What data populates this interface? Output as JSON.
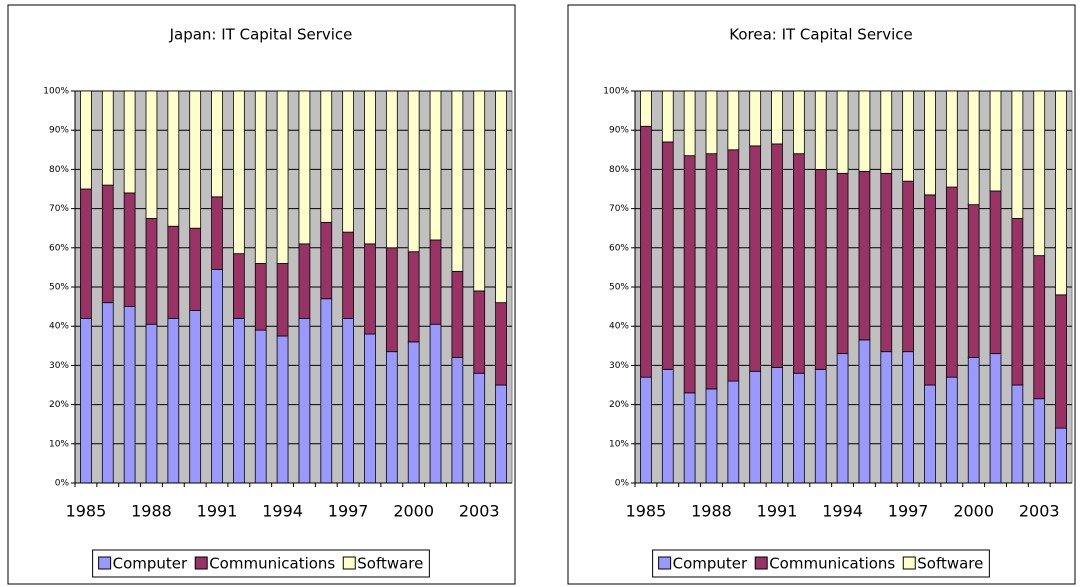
{
  "chart_data": [
    {
      "type": "bar",
      "stacked": true,
      "title": "Japan: IT Capital Service",
      "categories": [
        "1985",
        null,
        null,
        "1988",
        null,
        null,
        "1991",
        null,
        null,
        "1994",
        null,
        null,
        "1997",
        null,
        null,
        "2000",
        null,
        null,
        "2003",
        null
      ],
      "series": [
        {
          "name": "Computer",
          "color": "#9999ff",
          "values": [
            42,
            46,
            45,
            40.5,
            42,
            44,
            54.5,
            42,
            39,
            37.5,
            42,
            47,
            42,
            38,
            33.5,
            36,
            40.5,
            32,
            28,
            25
          ]
        },
        {
          "name": "Communications",
          "color": "#993366",
          "values": [
            33,
            30,
            29,
            27,
            23.5,
            21,
            18.5,
            16.5,
            17,
            18.5,
            19,
            19.5,
            22,
            23,
            26.5,
            23,
            21.5,
            22,
            21,
            21
          ]
        },
        {
          "name": "Software",
          "color": "#ffffcc",
          "values": [
            25,
            24,
            26,
            32.5,
            34.5,
            35,
            27,
            41.5,
            44,
            44,
            39,
            33.5,
            36,
            39,
            40,
            41,
            38,
            46,
            51,
            54
          ]
        }
      ],
      "ylim": [
        0,
        100
      ],
      "yticks": [
        {
          "value": 0,
          "label": "0%"
        },
        {
          "value": 10,
          "label": "10%"
        },
        {
          "value": 20,
          "label": "20%"
        },
        {
          "value": 30,
          "label": "30%"
        },
        {
          "value": 40,
          "label": "40%"
        },
        {
          "value": 50,
          "label": "50%"
        },
        {
          "value": 60,
          "label": "60%"
        },
        {
          "value": 70,
          "label": "70%"
        },
        {
          "value": 80,
          "label": "80%"
        },
        {
          "value": 90,
          "label": "90%"
        },
        {
          "value": 100,
          "label": "100%"
        }
      ],
      "grid": true,
      "legend": "bottom"
    },
    {
      "type": "bar",
      "stacked": true,
      "title": "Korea: IT Capital Service",
      "categories": [
        "1985",
        null,
        null,
        "1988",
        null,
        null,
        "1991",
        null,
        null,
        "1994",
        null,
        null,
        "1997",
        null,
        null,
        "2000",
        null,
        null,
        "2003",
        null
      ],
      "series": [
        {
          "name": "Computer",
          "color": "#9999ff",
          "values": [
            27,
            29,
            23,
            24,
            26,
            28.5,
            29.5,
            28,
            29,
            33,
            36.5,
            33.5,
            33.5,
            25,
            27,
            32,
            33,
            25,
            21.5,
            14
          ]
        },
        {
          "name": "Communications",
          "color": "#993366",
          "values": [
            64,
            58,
            60.5,
            60,
            59,
            57.5,
            57,
            56,
            51,
            46,
            43,
            45.5,
            43.5,
            48.5,
            48.5,
            39,
            41.5,
            42.5,
            36.5,
            34
          ]
        },
        {
          "name": "Software",
          "color": "#ffffcc",
          "values": [
            9,
            13,
            16.5,
            16,
            15,
            14,
            13.5,
            16,
            20,
            21,
            20.5,
            21,
            23,
            26.5,
            24.5,
            29,
            25.5,
            32.5,
            42,
            52
          ]
        }
      ],
      "ylim": [
        0,
        100
      ],
      "yticks": [
        {
          "value": 0,
          "label": "0%"
        },
        {
          "value": 10,
          "label": "10%"
        },
        {
          "value": 20,
          "label": "20%"
        },
        {
          "value": 30,
          "label": "30%"
        },
        {
          "value": 40,
          "label": "40%"
        },
        {
          "value": 50,
          "label": "50%"
        },
        {
          "value": 60,
          "label": "60%"
        },
        {
          "value": 70,
          "label": "70%"
        },
        {
          "value": 80,
          "label": "80%"
        },
        {
          "value": 90,
          "label": "90%"
        },
        {
          "value": 100,
          "label": "100%"
        }
      ],
      "grid": true,
      "legend": "bottom"
    }
  ]
}
